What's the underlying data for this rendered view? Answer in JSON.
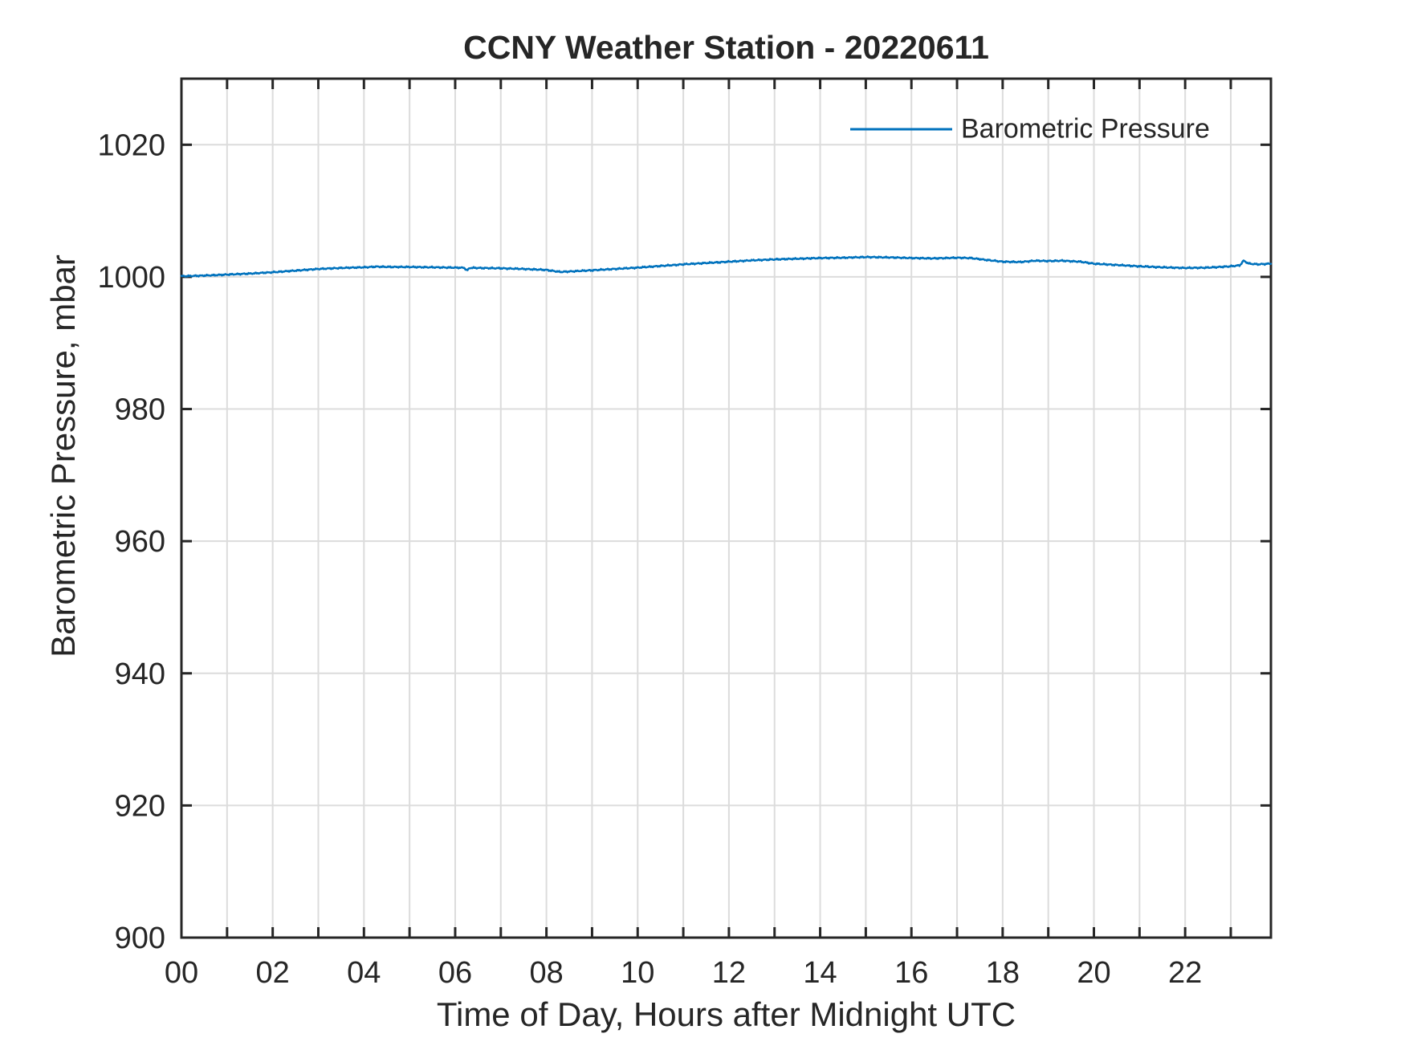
{
  "chart_data": {
    "type": "line",
    "title": "CCNY Weather Station - 20220611",
    "xlabel": "Time of Day, Hours after Midnight UTC",
    "ylabel": "Barometric Pressure, mbar",
    "legend_position": "top-right-inside",
    "grid": true,
    "xlim": [
      0,
      23.88
    ],
    "ylim": [
      900,
      1030
    ],
    "xtick_values": [
      0,
      1,
      2,
      3,
      4,
      5,
      6,
      7,
      8,
      9,
      10,
      11,
      12,
      13,
      14,
      15,
      16,
      17,
      18,
      19,
      20,
      21,
      22,
      23
    ],
    "xtick_labels": [
      "00",
      "",
      "02",
      "",
      "04",
      "",
      "06",
      "",
      "08",
      "",
      "10",
      "",
      "12",
      "",
      "14",
      "",
      "16",
      "",
      "18",
      "",
      "20",
      "",
      "22",
      ""
    ],
    "ytick_values": [
      900,
      920,
      940,
      960,
      980,
      1000,
      1020
    ],
    "ytick_labels": [
      "900",
      "920",
      "940",
      "960",
      "980",
      "1000",
      "1020"
    ],
    "colors": {
      "line": "#0072BD",
      "axis": "#262626",
      "grid": "#dcdcdc",
      "text": "#262626",
      "background": "#ffffff"
    },
    "series": [
      {
        "name": "Barometric Pressure",
        "color": "#0072BD",
        "x": [
          0,
          0.5,
          1,
          1.5,
          2,
          2.5,
          3,
          3.5,
          4,
          4.3,
          4.6,
          5,
          5.5,
          6,
          6.2,
          6.26,
          6.32,
          6.5,
          7,
          7.5,
          8,
          8.3,
          8.6,
          9,
          9.5,
          10,
          10.5,
          11,
          11.5,
          12,
          12.5,
          13,
          13.5,
          14,
          14.5,
          15,
          15.5,
          16,
          16.5,
          17,
          17.3,
          17.6,
          18,
          18.4,
          18.7,
          19,
          19.3,
          19.7,
          20,
          20.5,
          21,
          21.5,
          22,
          22.5,
          23,
          23.2,
          23.28,
          23.4,
          23.6,
          23.88
        ],
        "y": [
          1000.1,
          1000.2,
          1000.35,
          1000.5,
          1000.7,
          1000.95,
          1001.2,
          1001.35,
          1001.45,
          1001.55,
          1001.5,
          1001.5,
          1001.45,
          1001.4,
          1001.38,
          1000.95,
          1001.37,
          1001.35,
          1001.3,
          1001.2,
          1001.05,
          1000.75,
          1000.85,
          1001.0,
          1001.2,
          1001.4,
          1001.65,
          1001.9,
          1002.1,
          1002.3,
          1002.5,
          1002.65,
          1002.75,
          1002.85,
          1002.9,
          1003.0,
          1002.95,
          1002.85,
          1002.8,
          1002.9,
          1002.85,
          1002.6,
          1002.3,
          1002.25,
          1002.45,
          1002.4,
          1002.45,
          1002.3,
          1002.0,
          1001.8,
          1001.6,
          1001.45,
          1001.35,
          1001.4,
          1001.6,
          1001.75,
          1002.45,
          1002.0,
          1001.9,
          1002.0
        ]
      }
    ]
  }
}
